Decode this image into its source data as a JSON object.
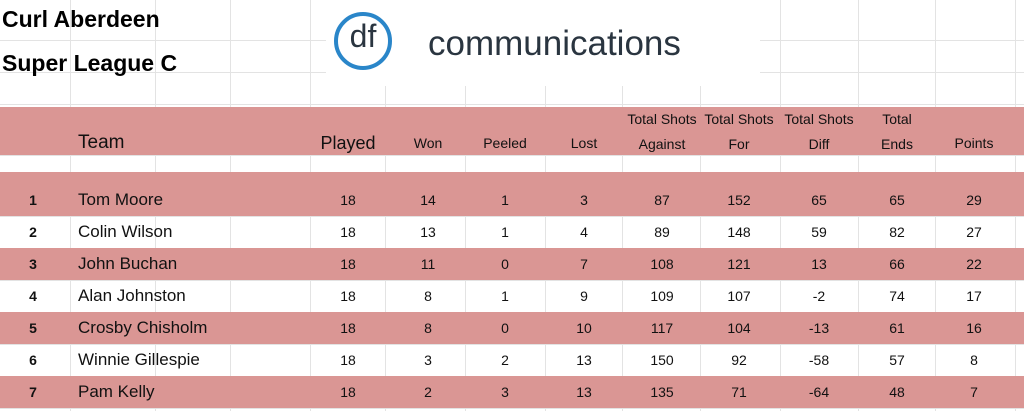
{
  "header": {
    "title_lines": [
      "Curl Aberdeen",
      "Super League C"
    ],
    "logo": {
      "mark": "df",
      "text": "communications"
    }
  },
  "table": {
    "columns": [
      [
        "Team"
      ],
      [
        "Played"
      ],
      [
        "Won"
      ],
      [
        "Peeled"
      ],
      [
        "Lost"
      ],
      [
        "Total Shots",
        "Against"
      ],
      [
        "Total Shots",
        "For"
      ],
      [
        "Total Shots",
        "Diff"
      ],
      [
        "Total",
        "Ends"
      ],
      [
        "Points"
      ]
    ],
    "rows": [
      [
        1,
        "Tom Moore",
        18,
        14,
        1,
        3,
        87,
        152,
        65,
        65,
        29
      ],
      [
        2,
        "Colin Wilson",
        18,
        13,
        1,
        4,
        89,
        148,
        59,
        82,
        27
      ],
      [
        3,
        "John Buchan",
        18,
        11,
        0,
        7,
        108,
        121,
        13,
        66,
        22
      ],
      [
        4,
        "Alan Johnston",
        18,
        8,
        1,
        9,
        109,
        107,
        -2,
        74,
        17
      ],
      [
        5,
        "Crosby Chisholm",
        18,
        8,
        0,
        10,
        117,
        104,
        -13,
        61,
        16
      ],
      [
        6,
        "Winnie Gillespie",
        18,
        3,
        2,
        13,
        150,
        92,
        -58,
        57,
        8
      ],
      [
        7,
        "Pam Kelly",
        18,
        2,
        3,
        13,
        135,
        71,
        -64,
        48,
        7
      ]
    ]
  }
}
